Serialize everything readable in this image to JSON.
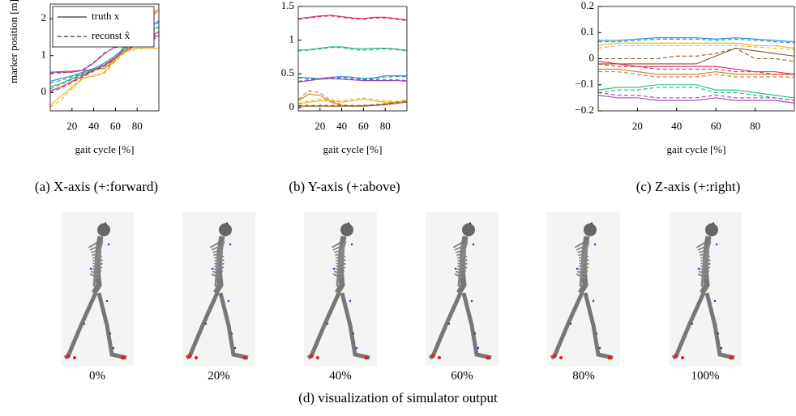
{
  "chart_data": [
    {
      "type": "line",
      "caption": "(a) X-axis (+:forward)",
      "xlabel": "gait cycle [%]",
      "ylabel": "marker position [m]",
      "x": [
        0,
        10,
        20,
        30,
        40,
        50,
        60,
        70,
        80,
        90,
        100
      ],
      "xlim": [
        0,
        100
      ],
      "xticks": [
        20,
        40,
        60,
        80
      ],
      "ylim": [
        -0.5,
        2.4
      ],
      "yticks": [
        0,
        1,
        2
      ],
      "legend": {
        "position": "upper left",
        "entries": [
          {
            "label": "truth x",
            "dashed": false
          },
          {
            "label": "reconst x̂",
            "dashed": true
          }
        ]
      },
      "series": [
        {
          "color": "#c8781e",
          "dashed": false,
          "values": [
            0.55,
            0.57,
            0.58,
            0.6,
            0.62,
            0.66,
            0.9,
            1.35,
            1.8,
            2.1,
            2.25
          ]
        },
        {
          "color": "#c8781e",
          "dashed": true,
          "values": [
            0.5,
            0.55,
            0.57,
            0.6,
            0.62,
            0.65,
            0.85,
            1.3,
            1.75,
            2.05,
            2.2
          ]
        },
        {
          "color": "#1f8fd0",
          "dashed": false,
          "values": [
            0.3,
            0.38,
            0.45,
            0.55,
            0.65,
            0.8,
            1.0,
            1.25,
            1.5,
            1.75,
            1.95
          ]
        },
        {
          "color": "#1f8fd0",
          "dashed": true,
          "values": [
            0.25,
            0.33,
            0.42,
            0.52,
            0.62,
            0.76,
            0.96,
            1.2,
            1.45,
            1.7,
            1.9
          ]
        },
        {
          "color": "#22b573",
          "dashed": false,
          "values": [
            0.15,
            0.25,
            0.38,
            0.5,
            0.62,
            0.75,
            0.95,
            1.2,
            1.45,
            1.65,
            1.8
          ]
        },
        {
          "color": "#22b573",
          "dashed": true,
          "values": [
            0.1,
            0.22,
            0.35,
            0.48,
            0.6,
            0.72,
            0.92,
            1.17,
            1.4,
            1.6,
            1.75
          ]
        },
        {
          "color": "#9b3fb5",
          "dashed": false,
          "values": [
            0.55,
            0.55,
            0.55,
            0.6,
            0.8,
            1.05,
            1.25,
            1.3,
            1.35,
            1.45,
            1.55
          ]
        },
        {
          "color": "#9b3fb5",
          "dashed": true,
          "values": [
            0.52,
            0.53,
            0.55,
            0.62,
            0.82,
            1.08,
            1.22,
            1.28,
            1.33,
            1.42,
            1.5
          ]
        },
        {
          "color": "#e0245e",
          "dashed": false,
          "values": [
            0.05,
            0.15,
            0.3,
            0.45,
            0.6,
            0.75,
            0.95,
            1.15,
            1.35,
            1.5,
            1.65
          ]
        },
        {
          "color": "#e0245e",
          "dashed": true,
          "values": [
            0.0,
            0.12,
            0.27,
            0.42,
            0.58,
            0.72,
            0.92,
            1.12,
            1.32,
            1.48,
            1.6
          ]
        },
        {
          "color": "#f2b01e",
          "dashed": false,
          "values": [
            -0.35,
            -0.1,
            0.15,
            0.4,
            0.45,
            0.55,
            0.9,
            1.15,
            1.2,
            1.2,
            1.2
          ]
        },
        {
          "color": "#f2b01e",
          "dashed": true,
          "values": [
            -0.4,
            -0.2,
            0.1,
            0.38,
            0.44,
            0.52,
            0.85,
            1.12,
            1.18,
            1.2,
            1.2
          ]
        }
      ]
    },
    {
      "type": "line",
      "caption": "(b) Y-axis (+:above)",
      "xlabel": "gait cycle [%]",
      "x": [
        0,
        10,
        20,
        30,
        40,
        50,
        60,
        70,
        80,
        90,
        100
      ],
      "xlim": [
        0,
        100
      ],
      "xticks": [
        20,
        40,
        60,
        80
      ],
      "ylim": [
        -0.05,
        1.5
      ],
      "yticks": [
        0,
        0.5,
        1,
        1.5
      ],
      "series": [
        {
          "color": "#e0245e",
          "dashed": false,
          "values": [
            1.32,
            1.34,
            1.36,
            1.37,
            1.35,
            1.33,
            1.32,
            1.34,
            1.34,
            1.32,
            1.3
          ]
        },
        {
          "color": "#e0245e",
          "dashed": true,
          "values": [
            1.31,
            1.33,
            1.35,
            1.36,
            1.34,
            1.32,
            1.31,
            1.33,
            1.33,
            1.31,
            1.29
          ]
        },
        {
          "color": "#22b573",
          "dashed": false,
          "values": [
            0.85,
            0.86,
            0.88,
            0.9,
            0.9,
            0.88,
            0.87,
            0.88,
            0.88,
            0.87,
            0.85
          ]
        },
        {
          "color": "#22b573",
          "dashed": true,
          "values": [
            0.84,
            0.85,
            0.87,
            0.89,
            0.89,
            0.86,
            0.85,
            0.86,
            0.87,
            0.86,
            0.84
          ]
        },
        {
          "color": "#1f8fd0",
          "dashed": false,
          "values": [
            0.45,
            0.44,
            0.43,
            0.45,
            0.46,
            0.45,
            0.43,
            0.44,
            0.47,
            0.47,
            0.47
          ]
        },
        {
          "color": "#1f8fd0",
          "dashed": true,
          "values": [
            0.44,
            0.43,
            0.42,
            0.43,
            0.45,
            0.44,
            0.42,
            0.43,
            0.45,
            0.46,
            0.46
          ]
        },
        {
          "color": "#9b3fb5",
          "dashed": false,
          "values": [
            0.38,
            0.4,
            0.42,
            0.43,
            0.42,
            0.41,
            0.4,
            0.4,
            0.4,
            0.4,
            0.39
          ]
        },
        {
          "color": "#9b3fb5",
          "dashed": true,
          "values": [
            0.39,
            0.41,
            0.43,
            0.44,
            0.43,
            0.42,
            0.41,
            0.41,
            0.41,
            0.41,
            0.4
          ]
        },
        {
          "color": "#c8781e",
          "dashed": false,
          "values": [
            0.1,
            0.2,
            0.18,
            0.08,
            0.03,
            0.02,
            0.03,
            0.03,
            0.05,
            0.08,
            0.1
          ]
        },
        {
          "color": "#c8781e",
          "dashed": true,
          "values": [
            0.12,
            0.25,
            0.22,
            0.1,
            0.04,
            0.02,
            0.03,
            0.04,
            0.06,
            0.09,
            0.11
          ]
        },
        {
          "color": "#f2b01e",
          "dashed": false,
          "values": [
            0.05,
            0.08,
            0.1,
            0.1,
            0.08,
            0.1,
            0.12,
            0.1,
            0.08,
            0.08,
            0.1
          ]
        },
        {
          "color": "#f2b01e",
          "dashed": true,
          "values": [
            0.06,
            0.1,
            0.12,
            0.11,
            0.1,
            0.12,
            0.14,
            0.12,
            0.1,
            0.09,
            0.11
          ]
        },
        {
          "color": "#8b5a2b",
          "dashed": false,
          "values": [
            0.02,
            0.02,
            0.02,
            0.02,
            0.02,
            0.02,
            0.02,
            0.03,
            0.04,
            0.06,
            0.08
          ]
        },
        {
          "color": "#8b5a2b",
          "dashed": true,
          "values": [
            0.03,
            0.03,
            0.03,
            0.03,
            0.03,
            0.03,
            0.03,
            0.04,
            0.05,
            0.07,
            0.09
          ]
        }
      ]
    },
    {
      "type": "line",
      "caption": "(c) Z-axis (+:right)",
      "xlabel": "gait cycle [%]",
      "x": [
        0,
        10,
        20,
        30,
        40,
        50,
        60,
        70,
        80,
        90,
        100
      ],
      "xlim": [
        0,
        100
      ],
      "xticks": [
        20,
        40,
        60,
        80
      ],
      "ylim": [
        -0.2,
        0.2
      ],
      "yticks": [
        {
          "value": -0.2,
          "label": "−0.2"
        },
        {
          "value": -0.1,
          "label": "−0.1"
        },
        0,
        0.1,
        0.2
      ],
      "series": [
        {
          "color": "#1f8fd0",
          "dashed": false,
          "values": [
            0.07,
            0.07,
            0.075,
            0.08,
            0.08,
            0.08,
            0.075,
            0.08,
            0.075,
            0.07,
            0.065
          ]
        },
        {
          "color": "#1f8fd0",
          "dashed": true,
          "values": [
            0.065,
            0.065,
            0.07,
            0.075,
            0.075,
            0.075,
            0.07,
            0.075,
            0.07,
            0.065,
            0.06
          ]
        },
        {
          "color": "#f2b01e",
          "dashed": false,
          "values": [
            0.05,
            0.06,
            0.06,
            0.06,
            0.06,
            0.06,
            0.06,
            0.06,
            0.05,
            0.05,
            0.04
          ]
        },
        {
          "color": "#f2b01e",
          "dashed": true,
          "values": [
            0.04,
            0.05,
            0.05,
            0.05,
            0.05,
            0.05,
            0.05,
            0.05,
            0.045,
            0.04,
            0.035
          ]
        },
        {
          "color": "#8b5a2b",
          "dashed": false,
          "values": [
            -0.02,
            -0.02,
            -0.02,
            -0.02,
            -0.02,
            -0.02,
            0.01,
            0.04,
            0.03,
            0.02,
            0.01
          ]
        },
        {
          "color": "#8b5a2b",
          "dashed": true,
          "values": [
            0.0,
            0.0,
            0.0,
            0.0,
            0.01,
            0.01,
            0.02,
            0.04,
            0.0,
            0.0,
            -0.01
          ]
        },
        {
          "color": "#c8781e",
          "dashed": false,
          "values": [
            -0.04,
            -0.04,
            -0.05,
            -0.06,
            -0.06,
            -0.06,
            -0.05,
            -0.06,
            -0.06,
            -0.06,
            -0.06
          ]
        },
        {
          "color": "#c8781e",
          "dashed": true,
          "values": [
            -0.05,
            -0.05,
            -0.06,
            -0.07,
            -0.07,
            -0.07,
            -0.06,
            -0.07,
            -0.07,
            -0.07,
            -0.07
          ]
        },
        {
          "color": "#e0245e",
          "dashed": false,
          "values": [
            -0.01,
            -0.02,
            -0.03,
            -0.03,
            -0.03,
            -0.03,
            -0.03,
            -0.04,
            -0.05,
            -0.05,
            -0.06
          ]
        },
        {
          "color": "#e0245e",
          "dashed": true,
          "values": [
            -0.02,
            -0.03,
            -0.03,
            -0.04,
            -0.04,
            -0.04,
            -0.04,
            -0.05,
            -0.05,
            -0.06,
            -0.06
          ]
        },
        {
          "color": "#22b573",
          "dashed": false,
          "values": [
            -0.12,
            -0.11,
            -0.11,
            -0.1,
            -0.1,
            -0.1,
            -0.12,
            -0.12,
            -0.13,
            -0.14,
            -0.15
          ]
        },
        {
          "color": "#22b573",
          "dashed": true,
          "values": [
            -0.13,
            -0.12,
            -0.12,
            -0.11,
            -0.11,
            -0.11,
            -0.13,
            -0.13,
            -0.14,
            -0.15,
            -0.16
          ]
        },
        {
          "color": "#9b3fb5",
          "dashed": false,
          "values": [
            -0.14,
            -0.15,
            -0.15,
            -0.16,
            -0.16,
            -0.16,
            -0.15,
            -0.16,
            -0.16,
            -0.16,
            -0.17
          ]
        },
        {
          "color": "#9b3fb5",
          "dashed": true,
          "values": [
            -0.13,
            -0.14,
            -0.14,
            -0.15,
            -0.15,
            -0.15,
            -0.14,
            -0.15,
            -0.15,
            -0.15,
            -0.16
          ]
        }
      ]
    }
  ],
  "figure": {
    "frames": [
      "0%",
      "20%",
      "40%",
      "60%",
      "80%",
      "100%"
    ],
    "caption": "(d) visualization of simulator output"
  }
}
